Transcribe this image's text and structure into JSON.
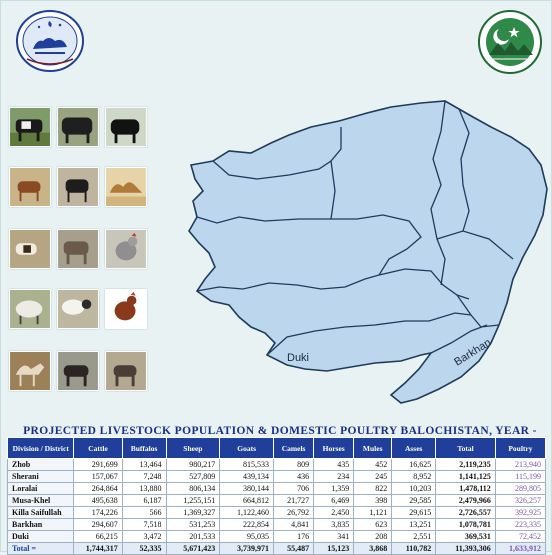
{
  "title": "PROJECTED LIVESTOCK POPULATION & DOMESTIC POULTRY BALOCHISTAN, YEAR - 2020",
  "logo_left": {
    "icon": "livestock-department-logo-icon"
  },
  "logo_right": {
    "icon": "balochistan-government-seal-icon"
  },
  "photos": [
    "cattle-photo",
    "buffalo-photo",
    "black-buffalo-photo",
    "goat-photo",
    "black-goat-photo",
    "camels-photo",
    "goats-photo",
    "donkey-photo",
    "rooster-photo",
    "sheep-photo",
    "sheep-flock-photo",
    "hen-photo",
    "camel-photo",
    "horse-photo",
    "mule-photo"
  ],
  "map_labels": {
    "duki": "Duki",
    "barkhan": "Barkhan"
  },
  "table": {
    "headers": [
      "Division / District",
      "Cattle",
      "Buffalos",
      "Sheep",
      "Goats",
      "Camels",
      "Horses",
      "Mules",
      "Asses",
      "Total",
      "Poultry"
    ],
    "rows": [
      {
        "name": "Zhob",
        "cells": [
          "291,699",
          "13,464",
          "980,217",
          "815,533",
          "809",
          "435",
          "452",
          "16,625",
          "2,119,235",
          "213,940"
        ]
      },
      {
        "name": "Sherani",
        "cells": [
          "157,067",
          "7,248",
          "527,809",
          "439,134",
          "436",
          "234",
          "245",
          "8,952",
          "1,141,125",
          "115,199"
        ]
      },
      {
        "name": "Loralai",
        "cells": [
          "264,864",
          "13,880",
          "806,134",
          "380,144",
          "706",
          "1,359",
          "822",
          "10,203",
          "1,478,112",
          "289,805"
        ]
      },
      {
        "name": "Musa-Khel",
        "cells": [
          "495,638",
          "6,187",
          "1,255,151",
          "664,812",
          "21,727",
          "6,469",
          "398",
          "29,585",
          "2,479,966",
          "326,257"
        ]
      },
      {
        "name": "Killa Saifullah",
        "cells": [
          "174,226",
          "566",
          "1,369,327",
          "1,122,460",
          "26,792",
          "2,450",
          "1,121",
          "29,615",
          "2,726,557",
          "392,925"
        ]
      },
      {
        "name": "Barkhan",
        "cells": [
          "294,607",
          "7,518",
          "531,253",
          "222,854",
          "4,841",
          "3,835",
          "623",
          "13,251",
          "1,078,781",
          "223,335"
        ]
      },
      {
        "name": "Duki",
        "cells": [
          "66,215",
          "3,472",
          "201,533",
          "95,035",
          "176",
          "341",
          "208",
          "2,551",
          "369,531",
          "72,452"
        ]
      }
    ],
    "total": {
      "name": "Total =",
      "cells": [
        "1,744,317",
        "52,335",
        "5,671,423",
        "3,739,971",
        "55,487",
        "15,123",
        "3,868",
        "110,782",
        "11,393,306",
        "1,633,912"
      ]
    }
  }
}
